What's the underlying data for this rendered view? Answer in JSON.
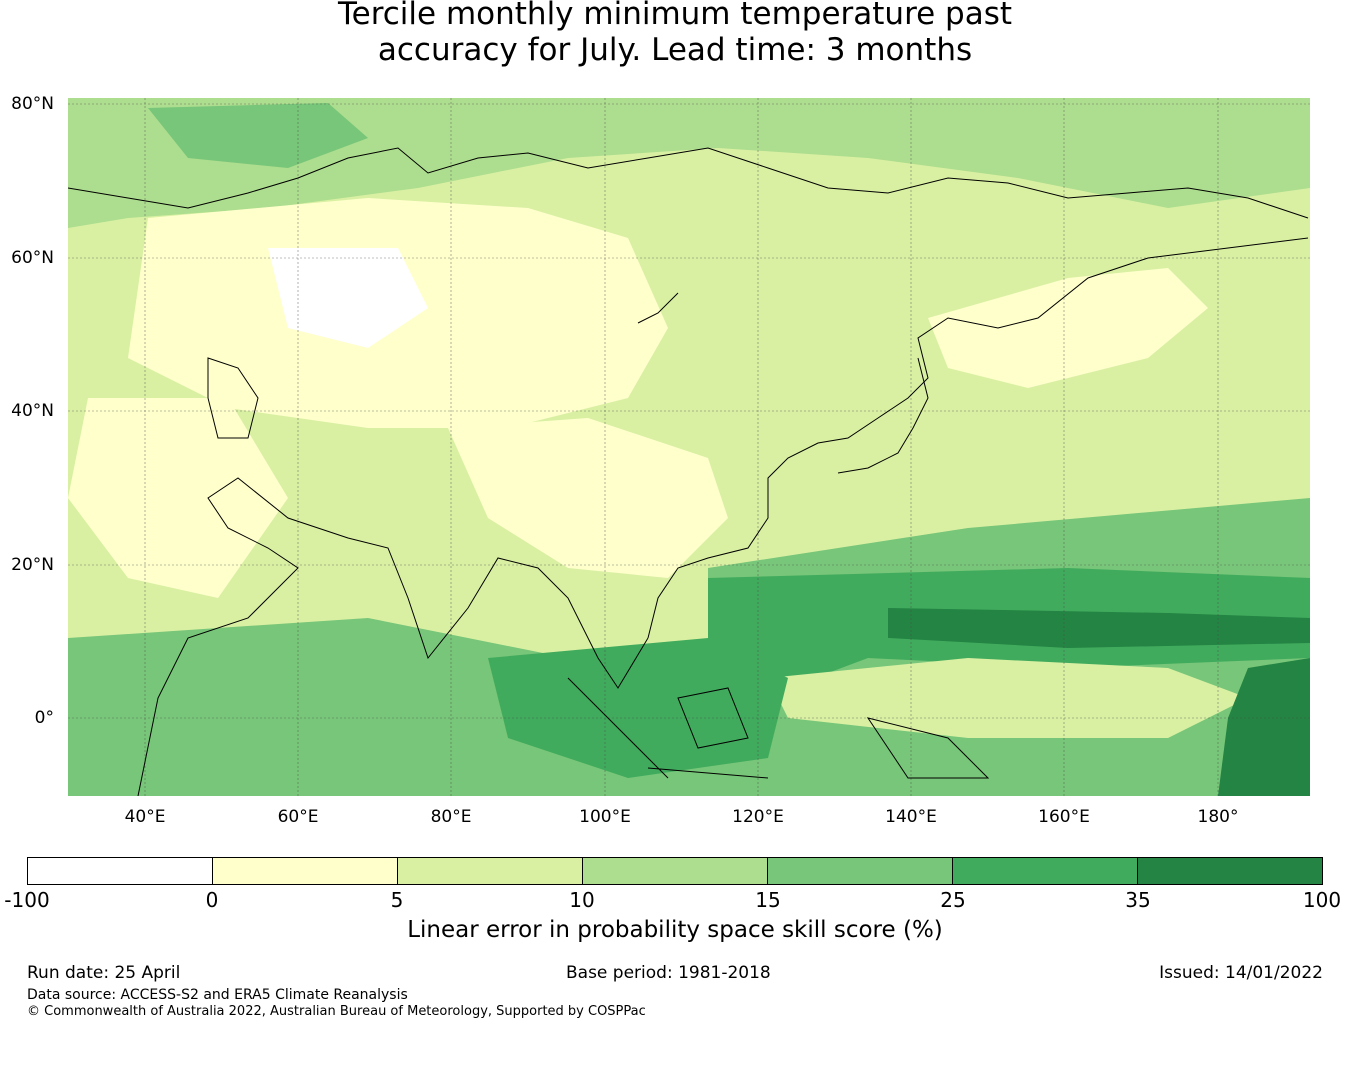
{
  "title_line1": "Tercile monthly minimum temperature past",
  "title_line2": "accuracy for July. Lead time: 3 months",
  "map": {
    "lat_ticks": [
      "80°N",
      "60°N",
      "40°N",
      "20°N",
      "0°"
    ],
    "lon_ticks": [
      "40°E",
      "60°E",
      "80°E",
      "100°E",
      "120°E",
      "140°E",
      "160°E",
      "180°"
    ],
    "extent": {
      "lon_min": 30,
      "lon_max": 192,
      "lat_min": -10,
      "lat_max": 80
    }
  },
  "colorbar": {
    "labels": [
      "-100",
      "0",
      "5",
      "10",
      "15",
      "25",
      "35",
      "100"
    ],
    "colors": [
      "#ffffff",
      "#ffffcc",
      "#d9f0a3",
      "#addd8e",
      "#78c679",
      "#41ab5d",
      "#238443"
    ],
    "title": "Linear error in probability space skill score (%)"
  },
  "footer": {
    "run_date": "Run date: 25 April",
    "base_period": "Base period: 1981-2018",
    "issued": "Issued: 14/01/2022",
    "data_source": "Data source: ACCESS-S2 and ERA5 Climate Reanalysis",
    "copyright": "© Commonwealth of Australia 2022, Australian Bureau of Meteorology, Supported by COSPPac"
  }
}
